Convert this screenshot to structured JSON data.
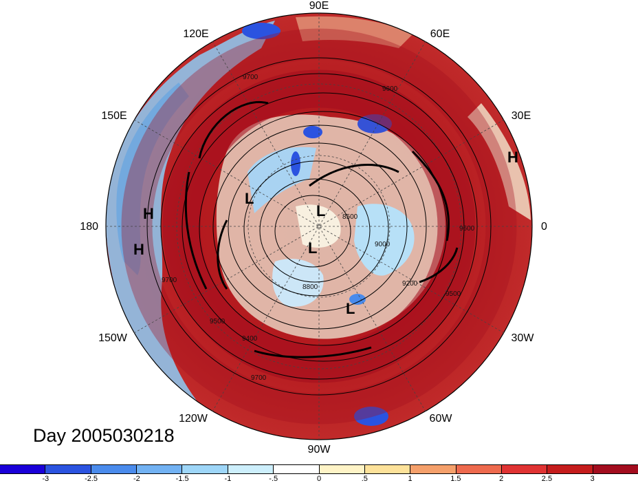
{
  "map": {
    "longitude_labels": {
      "top": "90E",
      "upper_left": "120E",
      "upper_right": "60E",
      "left_upper": "150E",
      "right_upper": "30E",
      "left": "180",
      "right": "0",
      "left_lower": "150W",
      "right_lower": "30W",
      "lower_left": "120W",
      "lower_right": "60W",
      "bottom": "90W"
    },
    "pressure_systems": [
      "H",
      "H",
      "H",
      "L",
      "L",
      "L",
      "L"
    ],
    "contour_labels": [
      "9700",
      "9600",
      "9500",
      "9400",
      "9200",
      "9000",
      "8800",
      "8500",
      "9700",
      "9500",
      "9700",
      "9600"
    ],
    "date_label": "Day 2005030218"
  },
  "colorbar": {
    "colors": [
      "#1a00d9",
      "#2b53e0",
      "#4a8bec",
      "#72b2f3",
      "#9ed6f8",
      "#cdeffc",
      "#ffffff",
      "#fff4c7",
      "#fde29a",
      "#f5a06b",
      "#ee6a4e",
      "#e03333",
      "#c51c1c",
      "#a30d1e"
    ],
    "tick_labels": [
      "-3",
      "-2.5",
      "-2",
      "-1.5",
      "-1",
      "-.5",
      "0",
      ".5",
      "1",
      "1.5",
      "2",
      "2.5",
      "3"
    ]
  }
}
